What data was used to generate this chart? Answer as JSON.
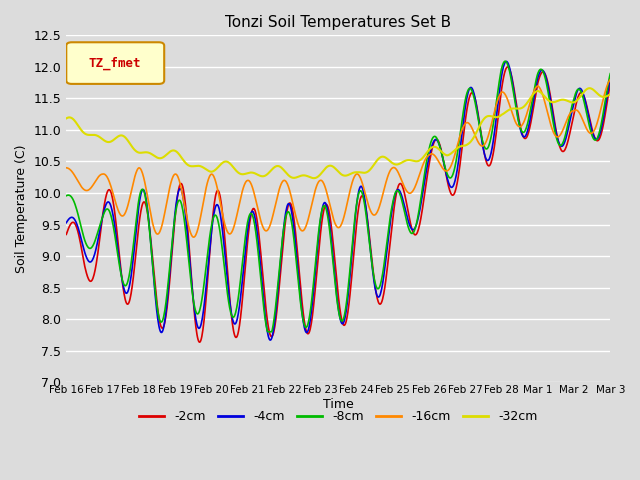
{
  "title": "Tonzi Soil Temperatures Set B",
  "xlabel": "Time",
  "ylabel": "Soil Temperature (C)",
  "ylim": [
    7.0,
    12.5
  ],
  "background_color": "#dcdcdc",
  "plot_bg_color": "#dcdcdc",
  "grid_color": "#ffffff",
  "series": [
    {
      "label": "-2cm",
      "color": "#dd0000",
      "lw": 1.2
    },
    {
      "label": "-4cm",
      "color": "#0000dd",
      "lw": 1.2
    },
    {
      "label": "-8cm",
      "color": "#00bb00",
      "lw": 1.2
    },
    {
      "label": "-16cm",
      "color": "#ff8800",
      "lw": 1.2
    },
    {
      "label": "-32cm",
      "color": "#dddd00",
      "lw": 1.5
    }
  ],
  "xtick_labels": [
    "Feb 16",
    "Feb 17",
    "Feb 18",
    "Feb 19",
    "Feb 20",
    "Feb 21",
    "Feb 22",
    "Feb 23",
    "Feb 24",
    "Feb 25",
    "Feb 26",
    "Feb 27",
    "Feb 28",
    "Mar 1",
    "Mar 2",
    "Mar 3"
  ],
  "legend_label": "TZ_fmet",
  "legend_box_color": "#ffffcc",
  "legend_text_color": "#cc0000",
  "figsize": [
    6.4,
    4.8
  ],
  "dpi": 100
}
